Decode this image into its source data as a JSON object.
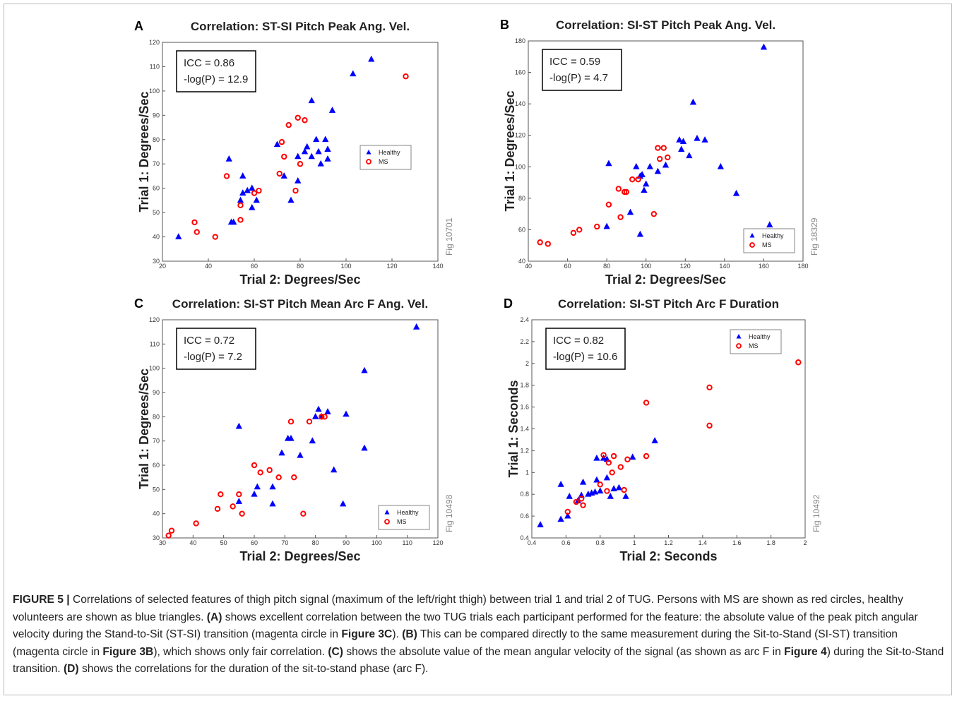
{
  "chart_data": [
    {
      "type": "scatter",
      "panel_label": "A",
      "title": "Correlation: ST-SI  Pitch Peak Ang. Vel.",
      "x_label": "Trial 2: Degrees/Sec",
      "y_label": "Trial 1: Degrees/Sec",
      "annotation": [
        "ICC   = 0.86",
        "-log(P) = 12.9"
      ],
      "side_label": "Fig 10701",
      "legend": "center right",
      "xlim": [
        20,
        140
      ],
      "xticks": [
        20,
        40,
        60,
        80,
        100,
        120,
        140
      ],
      "ylim": [
        30,
        120
      ],
      "yticks": [
        30,
        40,
        50,
        60,
        70,
        80,
        90,
        100,
        110,
        120
      ],
      "series": [
        {
          "name": "Healthy",
          "color": "#0000ff",
          "marker": "triangle",
          "x": [
            27,
            50,
            51,
            49,
            54,
            55,
            55,
            57,
            59,
            59,
            61,
            70,
            73,
            76,
            79,
            79,
            82,
            83,
            85,
            85,
            87,
            88,
            89,
            91,
            92,
            92,
            94,
            103,
            111
          ],
          "values": [
            40,
            46,
            46,
            72,
            55,
            65,
            58,
            59,
            60,
            52,
            55,
            78,
            65,
            55,
            63,
            73,
            75,
            77,
            96,
            73,
            80,
            75,
            70,
            80,
            76,
            72,
            92,
            107,
            113
          ]
        },
        {
          "name": "MS",
          "color": "#ff0000",
          "marker": "circle",
          "x": [
            34,
            35,
            43,
            48,
            54,
            54,
            60,
            62,
            71,
            72,
            73,
            75,
            78,
            79,
            80,
            82,
            126
          ],
          "values": [
            46,
            42,
            40,
            65,
            47,
            53,
            58,
            59,
            66,
            79,
            73,
            86,
            59,
            89,
            70,
            88,
            106
          ]
        }
      ]
    },
    {
      "type": "scatter",
      "panel_label": "B",
      "title": "Correlation: SI-ST  Pitch Peak Ang. Vel.",
      "x_label": "Trial 2: Degrees/Sec",
      "y_label": "Trial 1: Degrees/Sec",
      "annotation": [
        "ICC   = 0.59",
        "-log(P) = 4.7"
      ],
      "side_label": "Fig 18329",
      "legend": "lower right",
      "xlim": [
        40,
        180
      ],
      "xticks": [
        40,
        60,
        80,
        100,
        120,
        140,
        160,
        180
      ],
      "ylim": [
        40,
        180
      ],
      "yticks": [
        40,
        60,
        80,
        100,
        120,
        140,
        160,
        180
      ],
      "series": [
        {
          "name": "Healthy",
          "color": "#0000ff",
          "marker": "triangle",
          "x": [
            80,
            81,
            92,
            95,
            97,
            97,
            98,
            99,
            100,
            102,
            106,
            110,
            117,
            118,
            119,
            122,
            124,
            126,
            130,
            138,
            146,
            160,
            163
          ],
          "values": [
            62,
            102,
            71,
            100,
            57,
            94,
            95,
            85,
            89,
            100,
            97,
            101,
            117,
            111,
            116,
            107,
            141,
            118,
            117,
            100,
            83,
            176,
            63
          ]
        },
        {
          "name": "MS",
          "color": "#ff0000",
          "marker": "circle",
          "x": [
            46,
            50,
            63,
            66,
            75,
            81,
            86,
            87,
            89,
            90,
            93,
            96,
            104,
            106,
            107,
            109,
            111
          ],
          "values": [
            52,
            51,
            58,
            60,
            62,
            76,
            86,
            68,
            84,
            84,
            92,
            92,
            70,
            112,
            105,
            112,
            106
          ]
        }
      ]
    },
    {
      "type": "scatter",
      "panel_label": "C",
      "title": "Correlation: SI-ST  Pitch Mean Arc F Ang. Vel.",
      "x_label": "Trial 2: Degrees/Sec",
      "y_label": "Trial 1: Degrees/Sec",
      "annotation": [
        "ICC   = 0.72",
        "-log(P) = 7.2"
      ],
      "side_label": "Fig 10498",
      "legend": "lower right",
      "xlim": [
        30,
        120
      ],
      "xticks": [
        30,
        40,
        50,
        60,
        70,
        80,
        90,
        100,
        110,
        120
      ],
      "ylim": [
        30,
        120
      ],
      "yticks": [
        30,
        40,
        50,
        60,
        70,
        80,
        90,
        100,
        110,
        120
      ],
      "series": [
        {
          "name": "Healthy",
          "color": "#0000ff",
          "marker": "triangle",
          "x": [
            55,
            55,
            60,
            61,
            66,
            66,
            69,
            71,
            72,
            75,
            79,
            80,
            81,
            82,
            84,
            86,
            89,
            90,
            96,
            96,
            113
          ],
          "values": [
            45,
            76,
            48,
            51,
            44,
            51,
            65,
            71,
            71,
            64,
            70,
            80,
            83,
            80,
            82,
            58,
            44,
            81,
            99,
            67,
            117
          ]
        },
        {
          "name": "MS",
          "color": "#ff0000",
          "marker": "circle",
          "x": [
            32,
            33,
            41,
            48,
            49,
            53,
            55,
            56,
            60,
            62,
            65,
            68,
            72,
            73,
            76,
            78,
            82,
            83
          ],
          "values": [
            31,
            33,
            36,
            42,
            48,
            43,
            48,
            40,
            60,
            57,
            58,
            55,
            78,
            55,
            40,
            78,
            80,
            80
          ]
        }
      ]
    },
    {
      "type": "scatter",
      "panel_label": "D",
      "title": "Correlation: SI-ST  Pitch Arc F Duration",
      "x_label": "Trial 2: Seconds",
      "y_label": "Trial 1: Seconds",
      "annotation": [
        "ICC   = 0.82",
        "-log(P) = 10.6"
      ],
      "side_label": "Fig 10492",
      "legend": "upper right",
      "xlim": [
        0.4,
        2
      ],
      "xticks": [
        0.4,
        0.6,
        0.8,
        1,
        1.2,
        1.4,
        1.6,
        1.8,
        2
      ],
      "ylim": [
        0.4,
        2.4
      ],
      "yticks": [
        0.4,
        0.6,
        0.8,
        1,
        1.2,
        1.4,
        1.6,
        1.8,
        2,
        2.2,
        2.4
      ],
      "series": [
        {
          "name": "Healthy",
          "color": "#0000ff",
          "marker": "triangle",
          "x": [
            0.45,
            0.57,
            0.57,
            0.61,
            0.62,
            0.67,
            0.69,
            0.7,
            0.73,
            0.75,
            0.77,
            0.78,
            0.78,
            0.8,
            0.82,
            0.84,
            0.84,
            0.86,
            0.88,
            0.91,
            0.95,
            0.99,
            1.12
          ],
          "values": [
            0.52,
            0.57,
            0.89,
            0.6,
            0.78,
            0.74,
            0.79,
            0.91,
            0.8,
            0.81,
            0.82,
            0.93,
            1.13,
            0.83,
            1.13,
            0.95,
            1.12,
            0.78,
            0.85,
            0.86,
            0.78,
            1.14,
            1.29
          ]
        },
        {
          "name": "MS",
          "color": "#ff0000",
          "marker": "circle",
          "x": [
            0.61,
            0.66,
            0.69,
            0.7,
            0.8,
            0.82,
            0.84,
            0.85,
            0.87,
            0.88,
            0.92,
            0.94,
            0.96,
            1.07,
            1.07,
            1.44,
            1.44,
            1.96
          ],
          "values": [
            0.64,
            0.73,
            0.76,
            0.7,
            0.89,
            1.16,
            0.83,
            1.09,
            1.0,
            1.15,
            1.05,
            0.84,
            1.12,
            1.64,
            1.15,
            1.78,
            1.43,
            2.01
          ]
        }
      ]
    }
  ],
  "caption": [
    {
      "text": "FIGURE 5 |",
      "bold": true
    },
    {
      "text": " Correlations of selected features of thigh pitch signal (maximum of the left/right thigh) between trial 1 and trial 2 of TUG. Persons with MS are shown as red circles, healthy volunteers are shown as blue triangles. "
    },
    {
      "text": "(A)",
      "bold": true
    },
    {
      "text": " shows excellent correlation between the two TUG trials each participant performed for the feature: the absolute value of the peak pitch angular velocity during the Stand-to-Sit (ST-SI) transition (magenta circle in "
    },
    {
      "text": "Figure 3C",
      "bold": true
    },
    {
      "text": "). "
    },
    {
      "text": "(B)",
      "bold": true
    },
    {
      "text": " This can be compared directly to the same measurement during the Sit-to-Stand (SI-ST) transition (magenta circle in "
    },
    {
      "text": "Figure 3B",
      "bold": true
    },
    {
      "text": "), which shows only fair correlation. "
    },
    {
      "text": "(C)",
      "bold": true
    },
    {
      "text": " shows the absolute value of the mean angular velocity of the signal (as shown as arc F in "
    },
    {
      "text": "Figure 4",
      "bold": true
    },
    {
      "text": ") during the Sit-to-Stand transition. "
    },
    {
      "text": "(D)",
      "bold": true
    },
    {
      "text": " shows the correlations for the duration of the sit-to-stand phase (arc F)."
    }
  ]
}
